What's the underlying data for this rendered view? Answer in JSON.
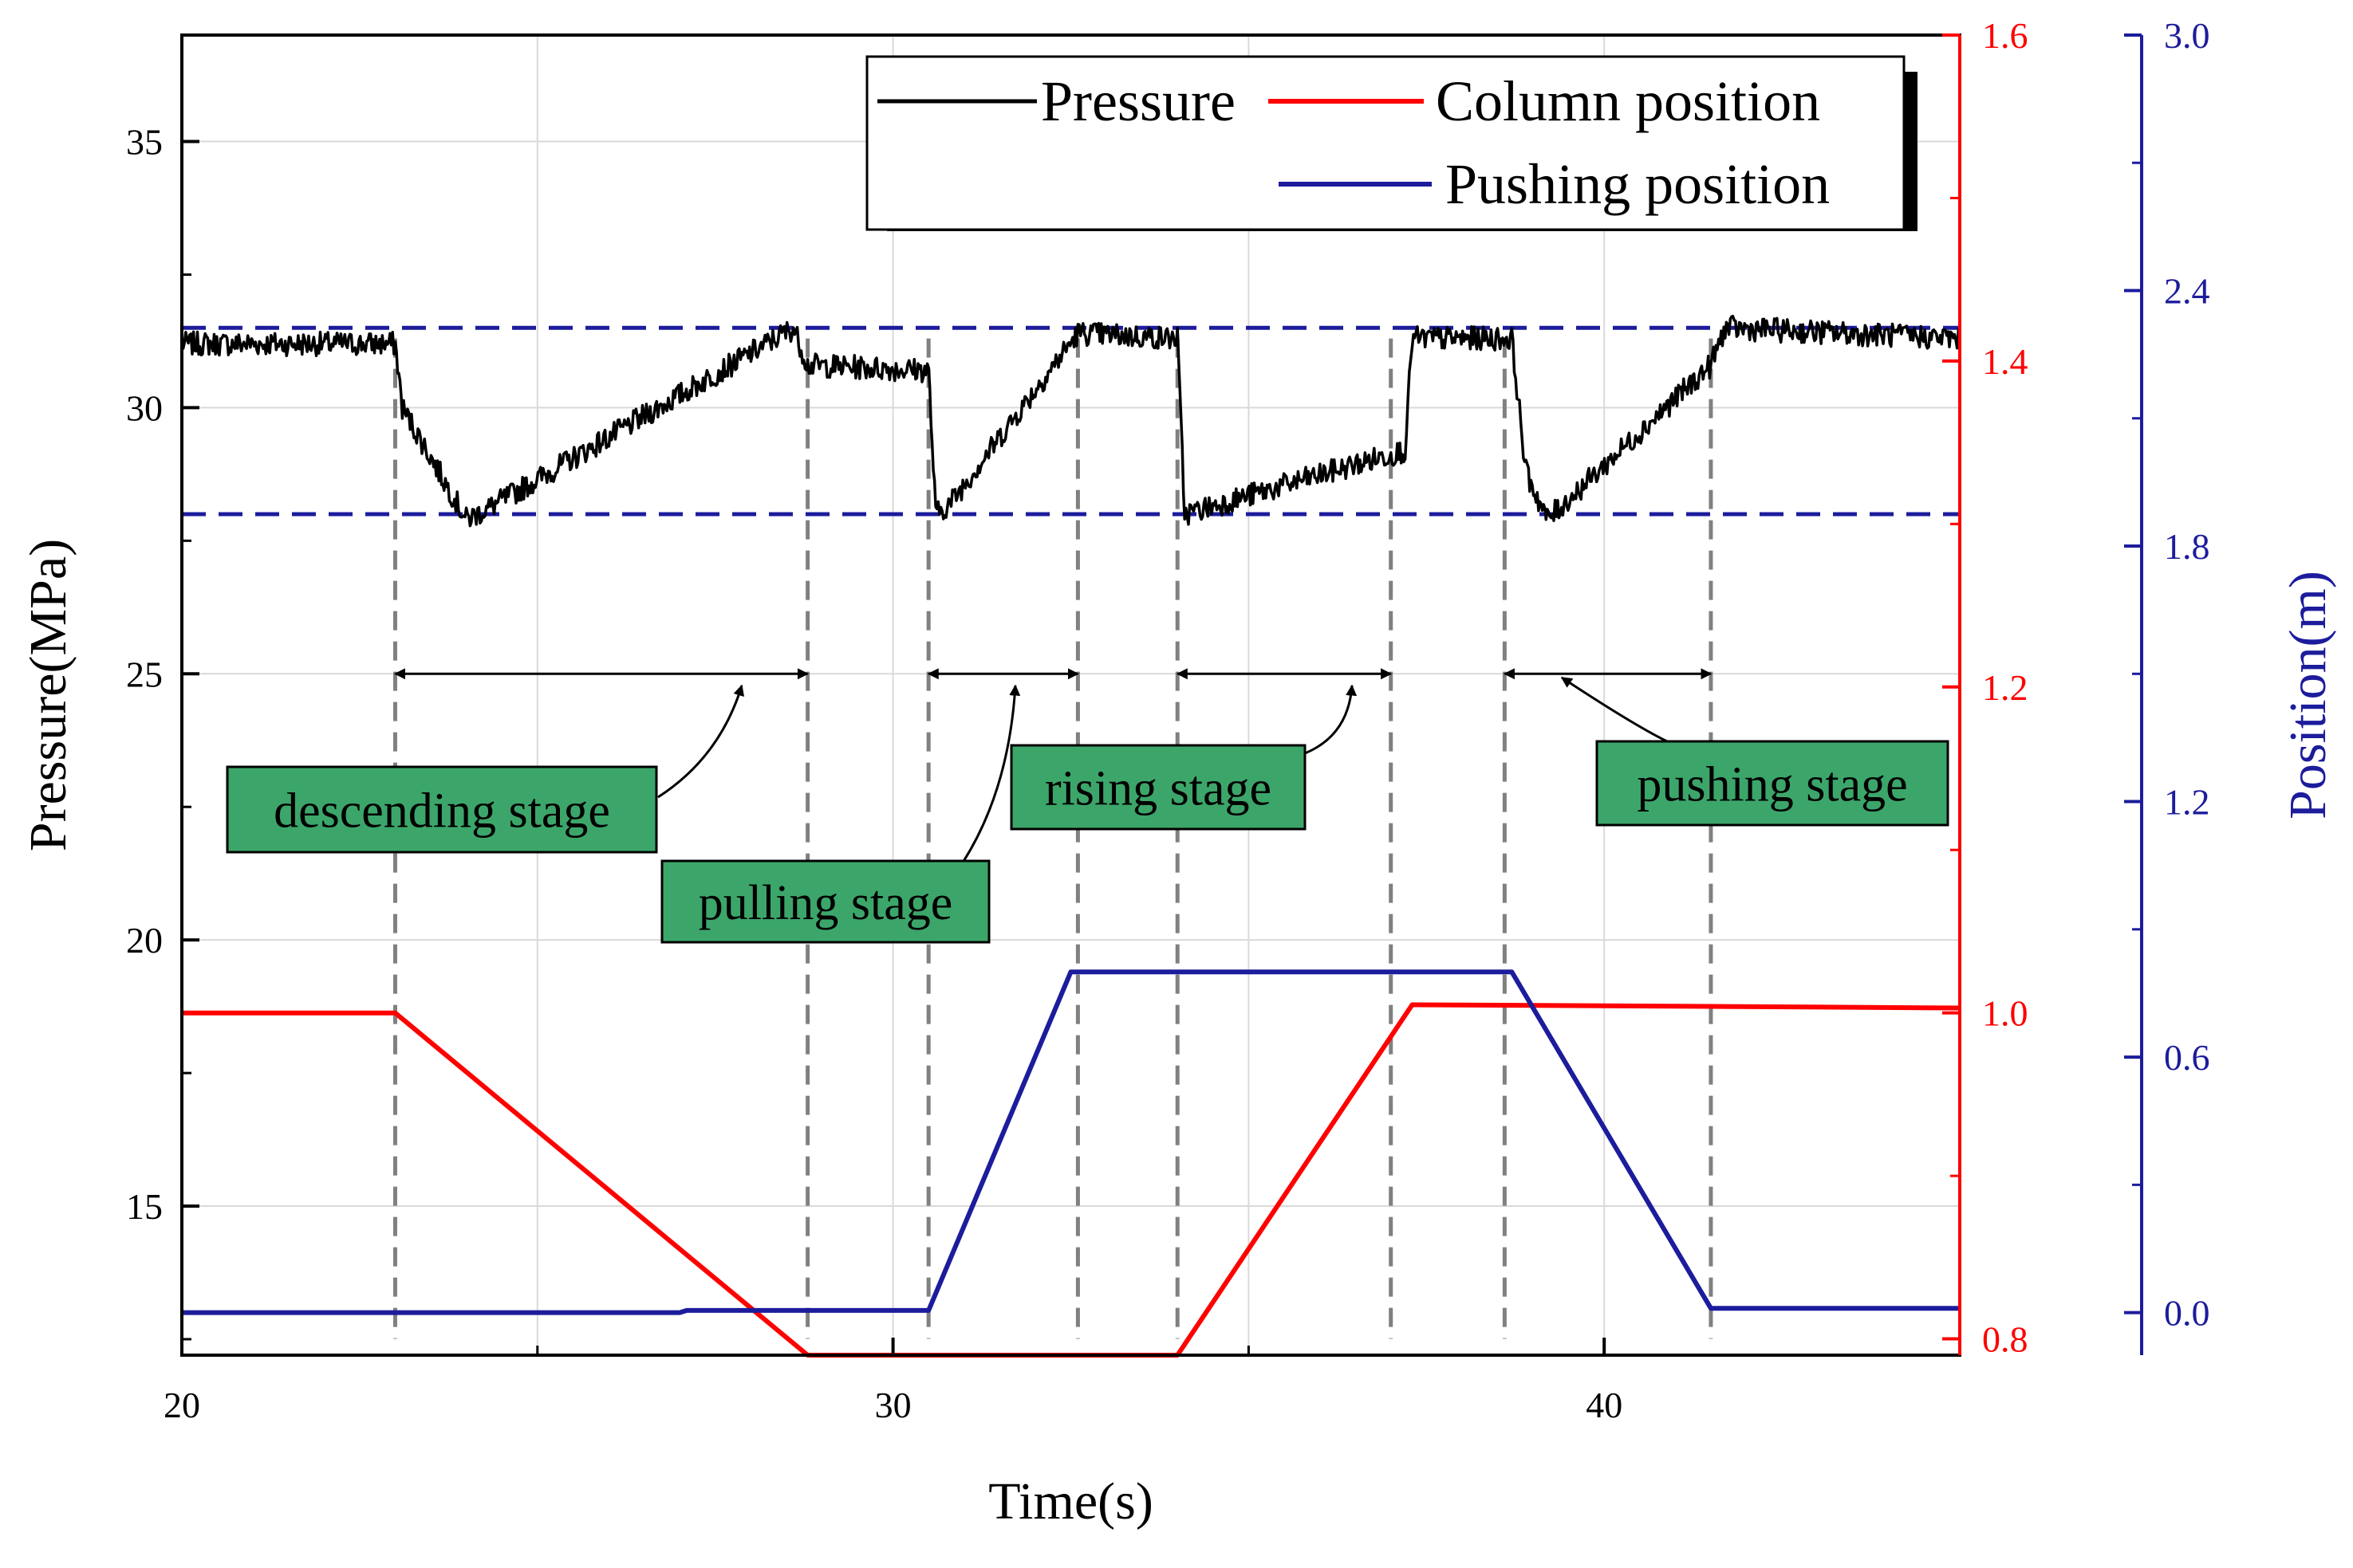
{
  "chart_data": {
    "type": "line",
    "x": {
      "label": "Time(s)",
      "range": [
        20,
        45
      ],
      "ticks": [
        20,
        30,
        40
      ]
    },
    "y_left": {
      "label": "Pressure(MPa)",
      "range": [
        12.2,
        37
      ],
      "ticks": [
        15,
        20,
        25,
        30,
        35
      ]
    },
    "y_right_red": {
      "range": [
        0.79,
        1.6
      ],
      "ticks": [
        "0.8",
        "1.0",
        "1.2",
        "1.4",
        "1.6"
      ],
      "color": "#ff0000"
    },
    "y_right_blue": {
      "label": "Position(m)",
      "range": [
        -0.1,
        3.0
      ],
      "ticks": [
        "0.0",
        "0.6",
        "1.2",
        "1.8",
        "2.4",
        "3.0"
      ],
      "color": "#1c1c9c"
    },
    "grid": true,
    "legend": {
      "position": "top-right",
      "entries": [
        "Pressure",
        "Column position",
        "Pushing position"
      ]
    },
    "series": [
      {
        "name": "Pressure",
        "axis": "left",
        "color": "#000000",
        "points": [
          [
            20,
            31.2
          ],
          [
            23.0,
            31.2
          ],
          [
            23.1,
            30.0
          ],
          [
            24.0,
            27.9
          ],
          [
            24.3,
            28.1
          ],
          [
            28.6,
            31.5
          ],
          [
            28.8,
            30.8
          ],
          [
            30.5,
            30.7
          ],
          [
            30.6,
            28.0
          ],
          [
            30.8,
            28.2
          ],
          [
            32.6,
            31.4
          ],
          [
            34.0,
            31.3
          ],
          [
            34.1,
            28.0
          ],
          [
            37.2,
            29.2
          ],
          [
            37.3,
            31.3
          ],
          [
            38.7,
            31.3
          ],
          [
            38.9,
            28.8
          ],
          [
            39.2,
            27.9
          ],
          [
            41.5,
            30.8
          ],
          [
            41.7,
            31.5
          ],
          [
            45,
            31.3
          ]
        ]
      },
      {
        "name": "Column position",
        "axis": "right_red",
        "color": "#ff0000",
        "points": [
          [
            20,
            1.0
          ],
          [
            23.0,
            1.0
          ],
          [
            28.8,
            0.79
          ],
          [
            34.0,
            0.79
          ],
          [
            37.3,
            1.005
          ],
          [
            41.5,
            1.004
          ],
          [
            45,
            1.003
          ]
        ]
      },
      {
        "name": "Pushing position",
        "axis": "right_blue",
        "color": "#1c1c9c",
        "points": [
          [
            20,
            0.0
          ],
          [
            27.0,
            0.0
          ],
          [
            27.1,
            0.005
          ],
          [
            30.5,
            0.005
          ],
          [
            32.5,
            0.8
          ],
          [
            38.7,
            0.8
          ],
          [
            41.5,
            0.01
          ],
          [
            45,
            0.01
          ]
        ]
      }
    ],
    "reference_lines": [
      {
        "axis": "left",
        "y": 31.5,
        "style": "dashed",
        "color": "#1c1c9c"
      },
      {
        "axis": "left",
        "y": 28.0,
        "style": "dashed",
        "color": "#1c1c9c"
      }
    ],
    "stage_markers": [
      23.0,
      28.8,
      30.5,
      32.6,
      34.0,
      37.0,
      38.6,
      41.5
    ],
    "stage_spans": [
      [
        23.0,
        28.8
      ],
      [
        30.5,
        32.6
      ],
      [
        34.0,
        37.0
      ],
      [
        38.6,
        41.5
      ]
    ],
    "span_arrow_y": 25.0,
    "annotations": [
      {
        "text": "descending stage"
      },
      {
        "text": "pulling stage"
      },
      {
        "text": "rising stage"
      },
      {
        "text": "pushing stage"
      }
    ],
    "colors": {
      "box_fill": "#3ca66a",
      "marker": "#808080",
      "grid": "#d9d9d9"
    }
  }
}
